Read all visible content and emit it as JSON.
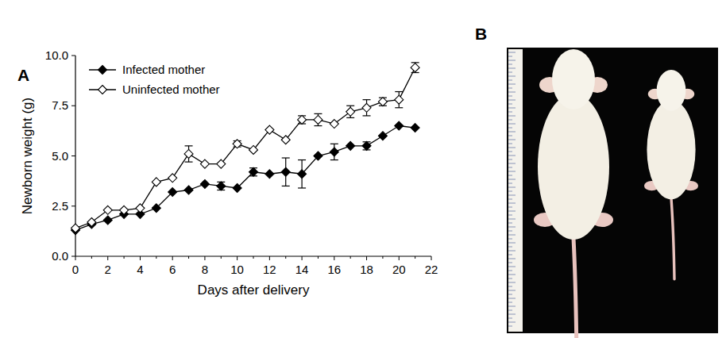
{
  "panel_labels": [
    "A",
    "B"
  ],
  "chart_data": {
    "type": "line",
    "x_label": "Days after delivery",
    "y_label": "Newborn weight (g)",
    "x": [
      0,
      1,
      2,
      3,
      4,
      5,
      6,
      7,
      8,
      9,
      10,
      11,
      12,
      13,
      14,
      15,
      16,
      17,
      18,
      19,
      20,
      21
    ],
    "series": [
      {
        "name": "Infected mother",
        "color": "#000000",
        "marker": "diamond",
        "line_style": "solid",
        "values": [
          1.3,
          1.6,
          1.8,
          2.1,
          2.1,
          2.4,
          3.2,
          3.3,
          3.6,
          3.5,
          3.4,
          4.2,
          4.1,
          4.2,
          4.1,
          5.0,
          5.2,
          5.5,
          5.5,
          6.0,
          6.5,
          6.4
        ],
        "errors": [
          0,
          0,
          0,
          0,
          0,
          0,
          0,
          0,
          0,
          0.2,
          0,
          0.2,
          0,
          0.7,
          0.7,
          0,
          0.4,
          0,
          0.2,
          0,
          0,
          0
        ]
      },
      {
        "name": "Uninfected mother",
        "color": "#ffffff",
        "marker": "diamond",
        "line_style": "solid",
        "values": [
          1.4,
          1.7,
          2.3,
          2.3,
          2.4,
          3.7,
          3.9,
          5.1,
          4.6,
          4.6,
          5.6,
          5.3,
          6.3,
          5.8,
          6.8,
          6.8,
          6.6,
          7.2,
          7.4,
          7.7,
          7.8,
          9.4
        ],
        "errors": [
          0,
          0,
          0,
          0,
          0,
          0,
          0,
          0.4,
          0,
          0,
          0.15,
          0,
          0,
          0,
          0.2,
          0.3,
          0,
          0.3,
          0.4,
          0.2,
          0.4,
          0.25
        ]
      }
    ],
    "xlim": [
      0,
      22
    ],
    "xticks": [
      0,
      2,
      4,
      6,
      8,
      10,
      12,
      14,
      16,
      18,
      20,
      22
    ],
    "ylim": [
      0,
      10
    ],
    "yticks": [
      {
        "value": 0,
        "label": "0.0"
      },
      2.5,
      {
        "value": 5,
        "label": "5.0"
      },
      7.5,
      {
        "value": 10,
        "label": "10.0"
      }
    ],
    "legend": "upper left",
    "grid": false
  }
}
